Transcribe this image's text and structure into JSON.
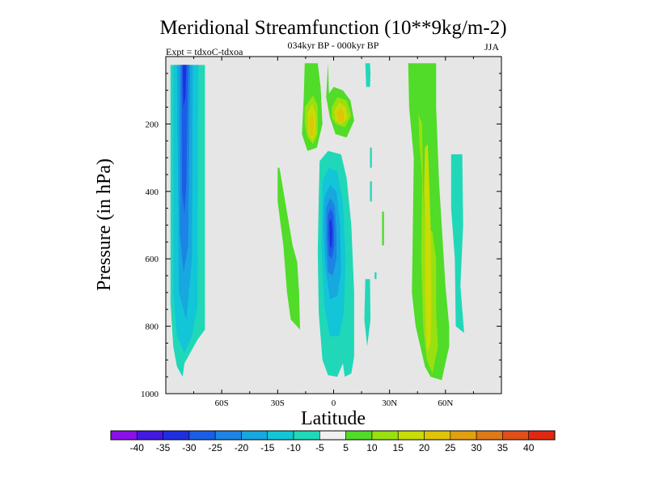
{
  "chart_data": {
    "type": "heatmap",
    "title": "Meridional Streamfunction (10**9kg/m-2)",
    "subtitle": "034kyr BP - 000kyr BP",
    "left_annotation": "Expt = tdxoC-tdxoa",
    "season": "JJA",
    "xlabel": "Latitude",
    "ylabel": "Pressure (in hPa)",
    "x_tick_labels": [
      "60S",
      "30S",
      "0",
      "30N",
      "60N"
    ],
    "x_ticks": [
      -60,
      -30,
      0,
      30,
      60
    ],
    "xlim": [
      -90,
      90
    ],
    "y_tick_labels": [
      "200",
      "400",
      "600",
      "800",
      "1000"
    ],
    "y_ticks": [
      200,
      400,
      600,
      800,
      1000
    ],
    "ylim": [
      1000,
      0
    ],
    "background_color": "#e6e6e6",
    "contour_levels": [
      -40,
      -35,
      -30,
      -25,
      -20,
      -15,
      -10,
      -5,
      5,
      10,
      15,
      20,
      25,
      30,
      35,
      40
    ],
    "colorbar_labels": [
      "-40",
      "-35",
      "-30",
      "-25",
      "-20",
      "-15",
      "-10",
      "-5",
      "5",
      "10",
      "15",
      "20",
      "25",
      "30",
      "35",
      "40"
    ],
    "colorbar_colors": [
      "#8a10e8",
      "#4318e0",
      "#1f2fe0",
      "#1b5ee6",
      "#1c84e4",
      "#16a8de",
      "#12c6d8",
      "#20d8b8",
      "#f0f0f0",
      "#50dc28",
      "#98e010",
      "#c8dc08",
      "#e0c408",
      "#e0a010",
      "#e07818",
      "#e05018",
      "#e02810"
    ],
    "features": [
      {
        "name": "southern-negative-cell",
        "lat": [
          -88,
          -70
        ],
        "p": [
          40,
          950
        ],
        "min_value": -35
      },
      {
        "name": "equatorial-negative-cell",
        "lat": [
          -8,
          12
        ],
        "p": [
          290,
          950
        ],
        "min_value": -30
      },
      {
        "name": "upper-positive-cell-west",
        "lat": [
          -20,
          -6
        ],
        "p": [
          100,
          270
        ],
        "max_value": 25
      },
      {
        "name": "upper-positive-cell-east",
        "lat": [
          -4,
          12
        ],
        "p": [
          100,
          220
        ],
        "max_value": 25
      },
      {
        "name": "northern-positive-band",
        "lat": [
          38,
          55
        ],
        "p": [
          20,
          960
        ],
        "max_value": 20
      },
      {
        "name": "southern-weak-positive",
        "lat": [
          -33,
          -17
        ],
        "p": [
          330,
          810
        ],
        "max_value": 10
      },
      {
        "name": "northern-weak-negative",
        "lat": [
          63,
          70
        ],
        "p": [
          290,
          820
        ],
        "min_value": -10
      }
    ]
  }
}
